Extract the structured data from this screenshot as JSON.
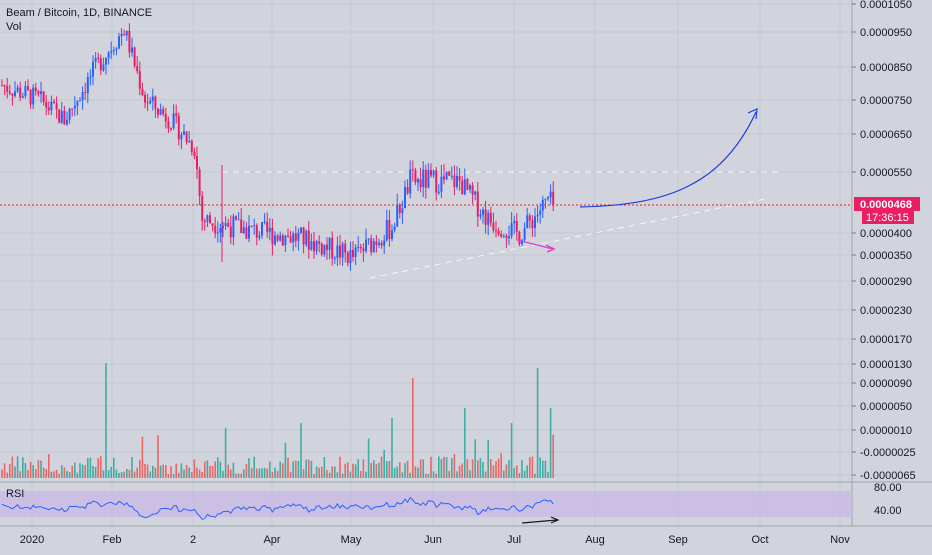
{
  "header": {
    "symbol": "Beam / Bitcoin, 1D, BINANCE",
    "volume_label": "Vol",
    "rsi_label": "RSI"
  },
  "price_axis": {
    "ticks": [
      "0.0001050",
      "0.0000950",
      "0.0000850",
      "0.0000750",
      "0.0000650",
      "0.0000550",
      "0.0000400",
      "0.0000350",
      "0.0000290",
      "0.0000230",
      "0.0000170",
      "0.0000130",
      "0.0000090",
      "0.0000050",
      "0.0000010",
      "-0.0000025",
      "-0.0000065"
    ]
  },
  "current_price": {
    "value": "0.0000468",
    "countdown": "17:36:15"
  },
  "rsi_axis": {
    "ticks": [
      "80.00",
      "40.00"
    ]
  },
  "time_axis": {
    "labels": [
      "2020",
      "Feb",
      "2",
      "Apr",
      "May",
      "Jun",
      "Jul",
      "Aug",
      "Sep",
      "Oct",
      "Nov"
    ]
  },
  "colors": {
    "background": "#d1d4dc",
    "up": "#2962ff",
    "down": "#e91e63",
    "vol_up": "#26a69a",
    "vol_down": "#ef5350",
    "rsi_line": "#2962ff",
    "rsi_band": "#c9b8e6",
    "price_line": "#e91e1e",
    "projection_arrow": "#1e3fd8",
    "divergence_arrow": "#e040c8",
    "rsi_arrow": "#131722"
  },
  "chart_data": {
    "type": "candlestick",
    "title": "Beam / Bitcoin, 1D, BINANCE",
    "y_range": [
      2.3e-05,
      0.000105
    ],
    "x_range": [
      "2019-12-27",
      "2020-11-05"
    ],
    "close_key_points": [
      {
        "x": "2019-12-27",
        "y": 8e-05
      },
      {
        "x": "2020-01-10",
        "y": 7.6e-05
      },
      {
        "x": "2020-01-20",
        "y": 7e-05
      },
      {
        "x": "2020-02-01",
        "y": 8.5e-05
      },
      {
        "x": "2020-02-12",
        "y": 9.6e-05
      },
      {
        "x": "2020-02-20",
        "y": 7.6e-05
      },
      {
        "x": "2020-03-01",
        "y": 7e-05
      },
      {
        "x": "2020-03-10",
        "y": 6.2e-05
      },
      {
        "x": "2020-03-13",
        "y": 4.3e-05
      },
      {
        "x": "2020-04-01",
        "y": 4e-05
      },
      {
        "x": "2020-04-20",
        "y": 3.8e-05
      },
      {
        "x": "2020-05-10",
        "y": 3.3e-05
      },
      {
        "x": "2020-05-25",
        "y": 4.1e-05
      },
      {
        "x": "2020-06-01",
        "y": 5.3e-05
      },
      {
        "x": "2020-06-20",
        "y": 5.3e-05
      },
      {
        "x": "2020-07-01",
        "y": 4.3e-05
      },
      {
        "x": "2020-07-13",
        "y": 3.9e-05
      },
      {
        "x": "2020-07-24",
        "y": 4.8e-05
      },
      {
        "x": "2020-07-26",
        "y": 4.68e-05
      }
    ],
    "current_price": 4.68e-05,
    "rsi_range": [
      20,
      90
    ],
    "rsi_levels": [
      70,
      30
    ]
  }
}
